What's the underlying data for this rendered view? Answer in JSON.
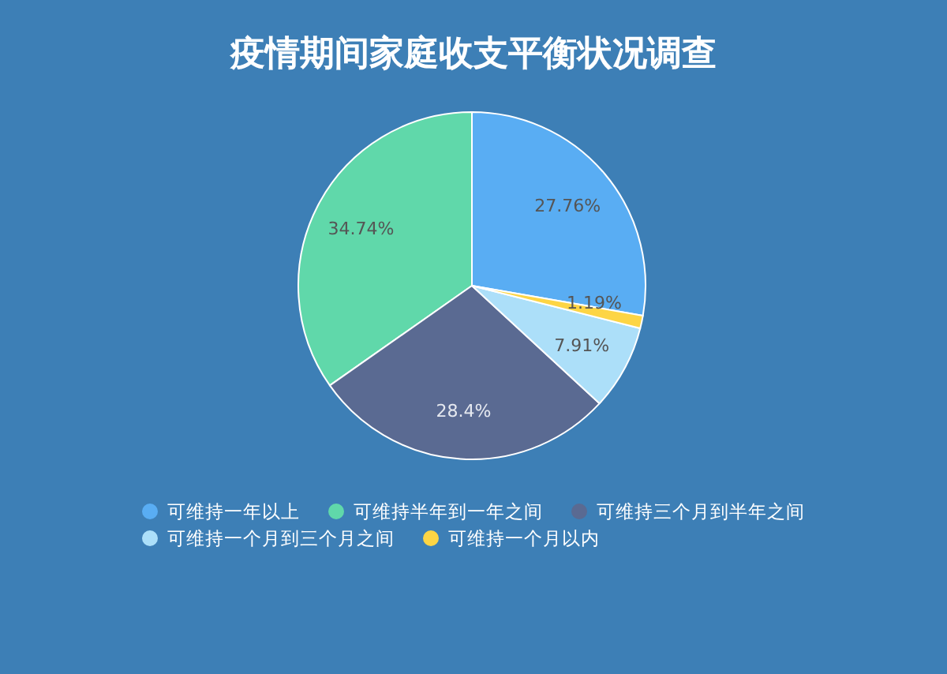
{
  "chart_data": {
    "type": "pie",
    "title": "疫情期间家庭收支平衡状况调查",
    "categories": [
      "可维持一年以上",
      "可维持半年到一年之间",
      "可维持三个月到半年之间",
      "可维持一个月到三个月之间",
      "可维持一个月以内"
    ],
    "values": [
      27.76,
      34.74,
      28.4,
      7.91,
      1.19
    ],
    "colors": [
      "#59adf3",
      "#60d8aa",
      "#5a6a92",
      "#acdff9",
      "#fdd545"
    ],
    "value_labels": [
      "27.76%",
      "34.74%",
      "28.4%",
      "7.91%",
      "1.19%"
    ],
    "legend": "bottom"
  }
}
